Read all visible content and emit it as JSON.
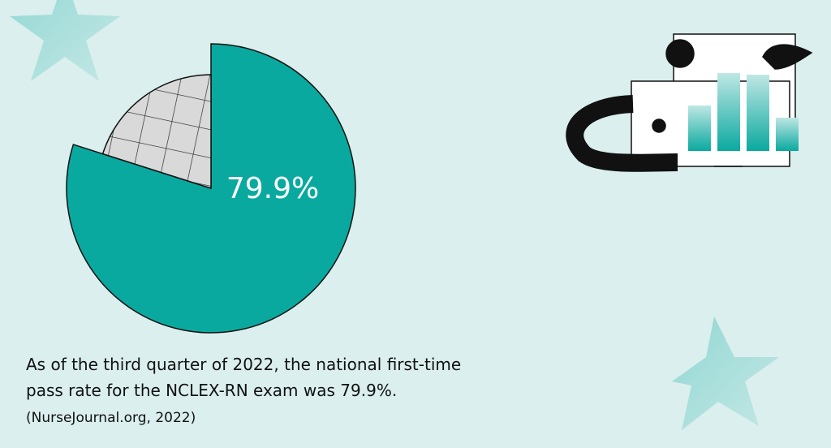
{
  "chart_data": {
    "type": "pie",
    "values": [
      79.9,
      20.1
    ],
    "value_labels": [
      "79.9%",
      null
    ],
    "colors": [
      "#0aa99f",
      "#d9d9d9"
    ],
    "annotations": [
      "As of the third quarter of 2022, the national first-time",
      "pass rate for the NCLEX-RN exam was 79.9%.",
      "(NurseJournal.org, 2022)"
    ]
  }
}
